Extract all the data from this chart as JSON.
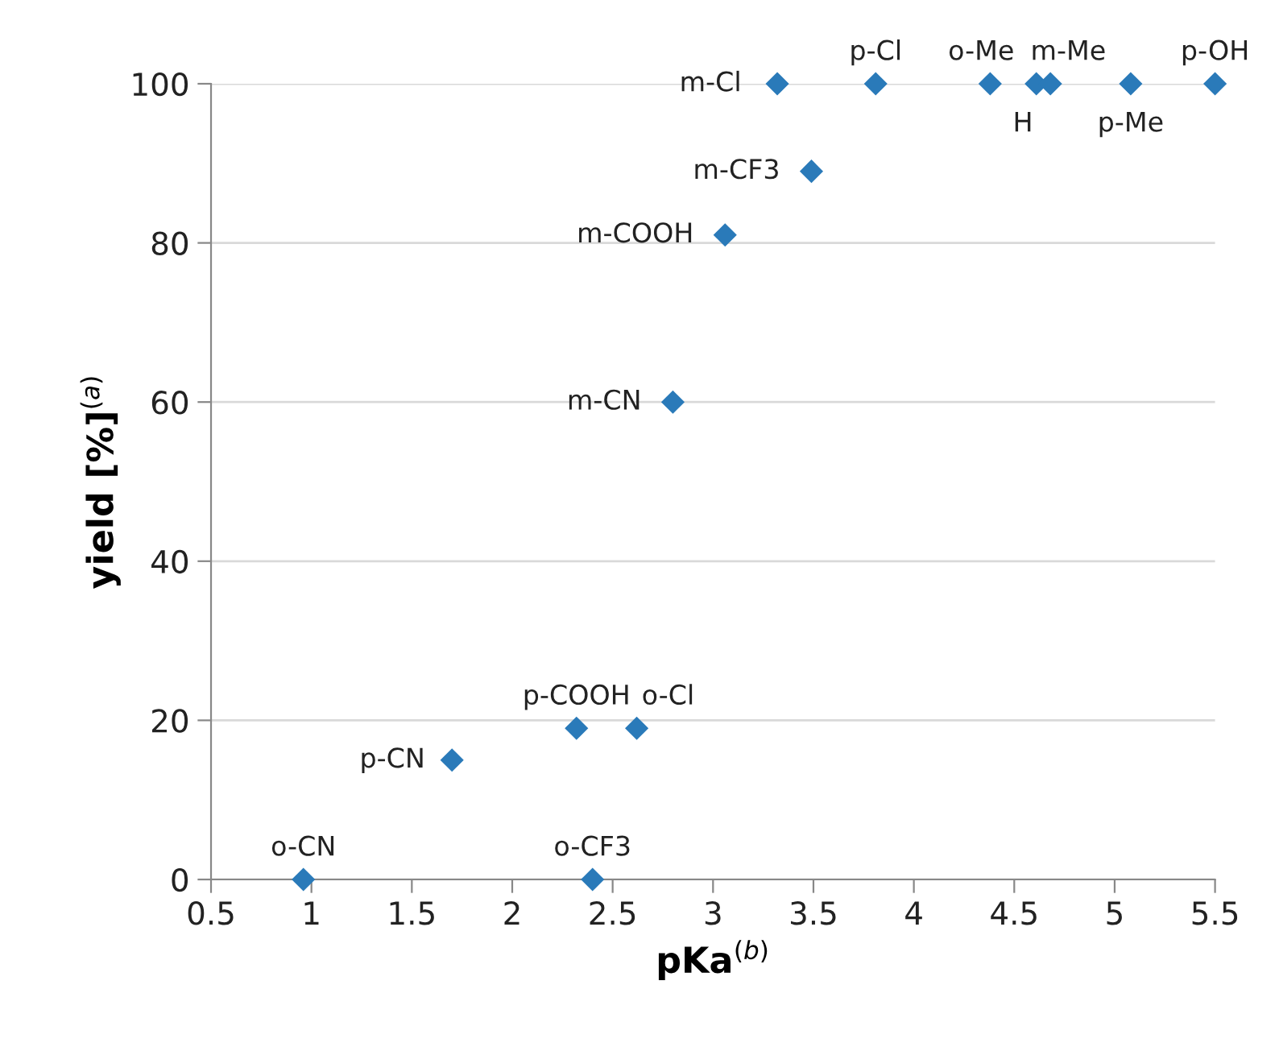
{
  "chart_data": {
    "type": "scatter",
    "xlabel": "pKa$^{(b)}$",
    "ylabel": "yield [%]$^{(a)}$",
    "x": [
      0.96,
      1.7,
      2.32,
      2.62,
      2.4,
      2.8,
      3.06,
      3.49,
      3.32,
      3.81,
      4.38,
      4.61,
      4.68,
      5.08,
      5.5
    ],
    "values": [
      0,
      15,
      19,
      19,
      0,
      60,
      81,
      89,
      100,
      100,
      100,
      100,
      100,
      100,
      100
    ],
    "color": "#2a7ab9",
    "marker": "diamond",
    "grid": "y",
    "xlim": [
      0.5,
      5.5
    ],
    "xticks": [
      0.5,
      1,
      1.5,
      2,
      2.5,
      3,
      3.5,
      4,
      4.5,
      5,
      5.5
    ],
    "ylim": [
      0,
      100
    ],
    "yticks": [
      0,
      20,
      40,
      60,
      80,
      100
    ],
    "annotations": [
      {
        "text": "o-CN",
        "x": 0.96,
        "y": 0
      },
      {
        "text": "p-CN",
        "x": 1.7,
        "y": 15
      },
      {
        "text": "p-COOH",
        "x": 2.32,
        "y": 19
      },
      {
        "text": "o-Cl",
        "x": 2.62,
        "y": 19
      },
      {
        "text": "o-CF3",
        "x": 2.4,
        "y": 0
      },
      {
        "text": "m-CN",
        "x": 2.8,
        "y": 60
      },
      {
        "text": "m-COOH",
        "x": 3.06,
        "y": 81
      },
      {
        "text": "m-CF3",
        "x": 3.49,
        "y": 89
      },
      {
        "text": "m-Cl",
        "x": 3.32,
        "y": 100
      },
      {
        "text": "p-Cl",
        "x": 3.81,
        "y": 100
      },
      {
        "text": "o-Me",
        "x": 4.38,
        "y": 100
      },
      {
        "text": "H",
        "x": 4.61,
        "y": 100
      },
      {
        "text": "m-Me",
        "x": 4.68,
        "y": 100
      },
      {
        "text": "p-Me",
        "x": 5.08,
        "y": 100
      },
      {
        "text": "p-OH",
        "x": 5.5,
        "y": 100
      }
    ]
  }
}
